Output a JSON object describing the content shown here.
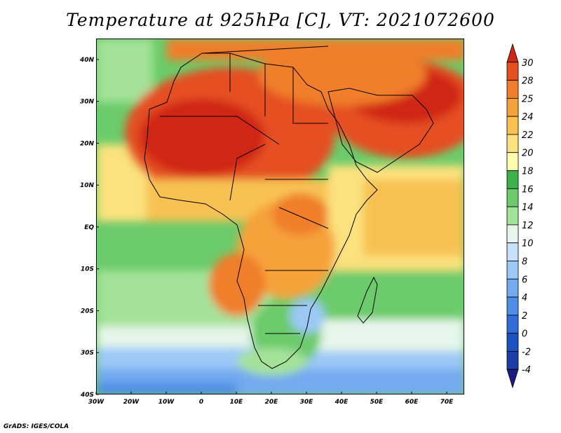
{
  "title": "Temperature at 925hPa [C], VT: 2021072600",
  "footer": "GrADS: IGES/COLA",
  "map": {
    "lon_range": [
      -30,
      75
    ],
    "lat_range": [
      -40,
      45
    ],
    "x_ticks": [
      "30W",
      "20W",
      "10W",
      "0",
      "10E",
      "20E",
      "30E",
      "40E",
      "50E",
      "60E",
      "70E"
    ],
    "y_ticks": [
      "40S",
      "30S",
      "20S",
      "10S",
      "EQ",
      "10N",
      "20N",
      "30N",
      "40N"
    ]
  },
  "colorbar": {
    "levels": [
      "-4",
      "-2",
      "0",
      "2",
      "4",
      "6",
      "8",
      "10",
      "12",
      "14",
      "16",
      "18",
      "20",
      "22",
      "24",
      "25",
      "28",
      "30"
    ],
    "colors": [
      "#1c1c88",
      "#1c3ca6",
      "#1a52c2",
      "#2f6ed8",
      "#4f8ee6",
      "#73aaf0",
      "#9cc8f6",
      "#c5e2fa",
      "#e6f6ea",
      "#a4e29a",
      "#6ccb6a",
      "#3eb24a",
      "#fdfbb0",
      "#fbe27e",
      "#f8c252",
      "#f6a23a",
      "#f07e2a",
      "#e55020",
      "#d02818"
    ]
  }
}
